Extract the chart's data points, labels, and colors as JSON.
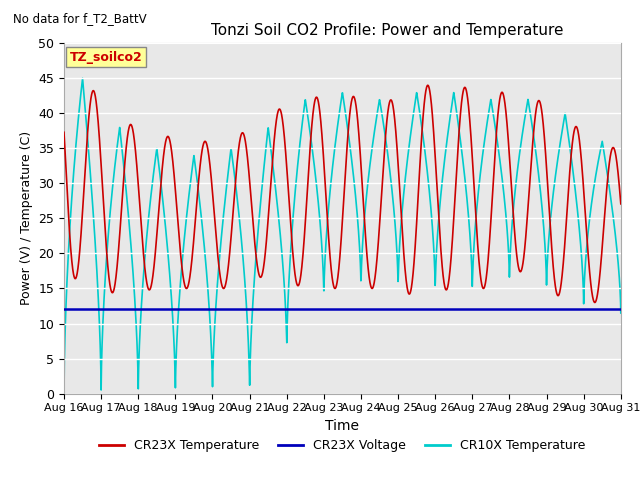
{
  "title": "Tonzi Soil CO2 Profile: Power and Temperature",
  "subtitle": "No data for f_T2_BattV",
  "xlabel": "Time",
  "ylabel": "Power (V) / Temperature (C)",
  "ylim": [
    0,
    50
  ],
  "yticks": [
    0,
    5,
    10,
    15,
    20,
    25,
    30,
    35,
    40,
    45,
    50
  ],
  "x_tick_labels": [
    "Aug 16",
    "Aug 17",
    "Aug 18",
    "Aug 19",
    "Aug 20",
    "Aug 21",
    "Aug 22",
    "Aug 23",
    "Aug 24",
    "Aug 25",
    "Aug 26",
    "Aug 27",
    "Aug 28",
    "Aug 29",
    "Aug 30",
    "Aug 31"
  ],
  "legend_entries": [
    "CR23X Temperature",
    "CR23X Voltage",
    "CR10X Temperature"
  ],
  "cr23x_temp_color": "#cc0000",
  "cr23x_volt_color": "#0000bb",
  "cr10x_temp_color": "#00cccc",
  "fig_bg_color": "#ffffff",
  "plot_bg_color": "#e8e8e8",
  "annotation_box_color": "#ffff99",
  "annotation_text": "TZ_soilco2",
  "temp_min_cr23x": 13,
  "temp_max_cr23x": 45,
  "temp_min_cr10x": 0,
  "temp_max_cr10x": 45,
  "voltage_level": 12,
  "total_days": 15
}
